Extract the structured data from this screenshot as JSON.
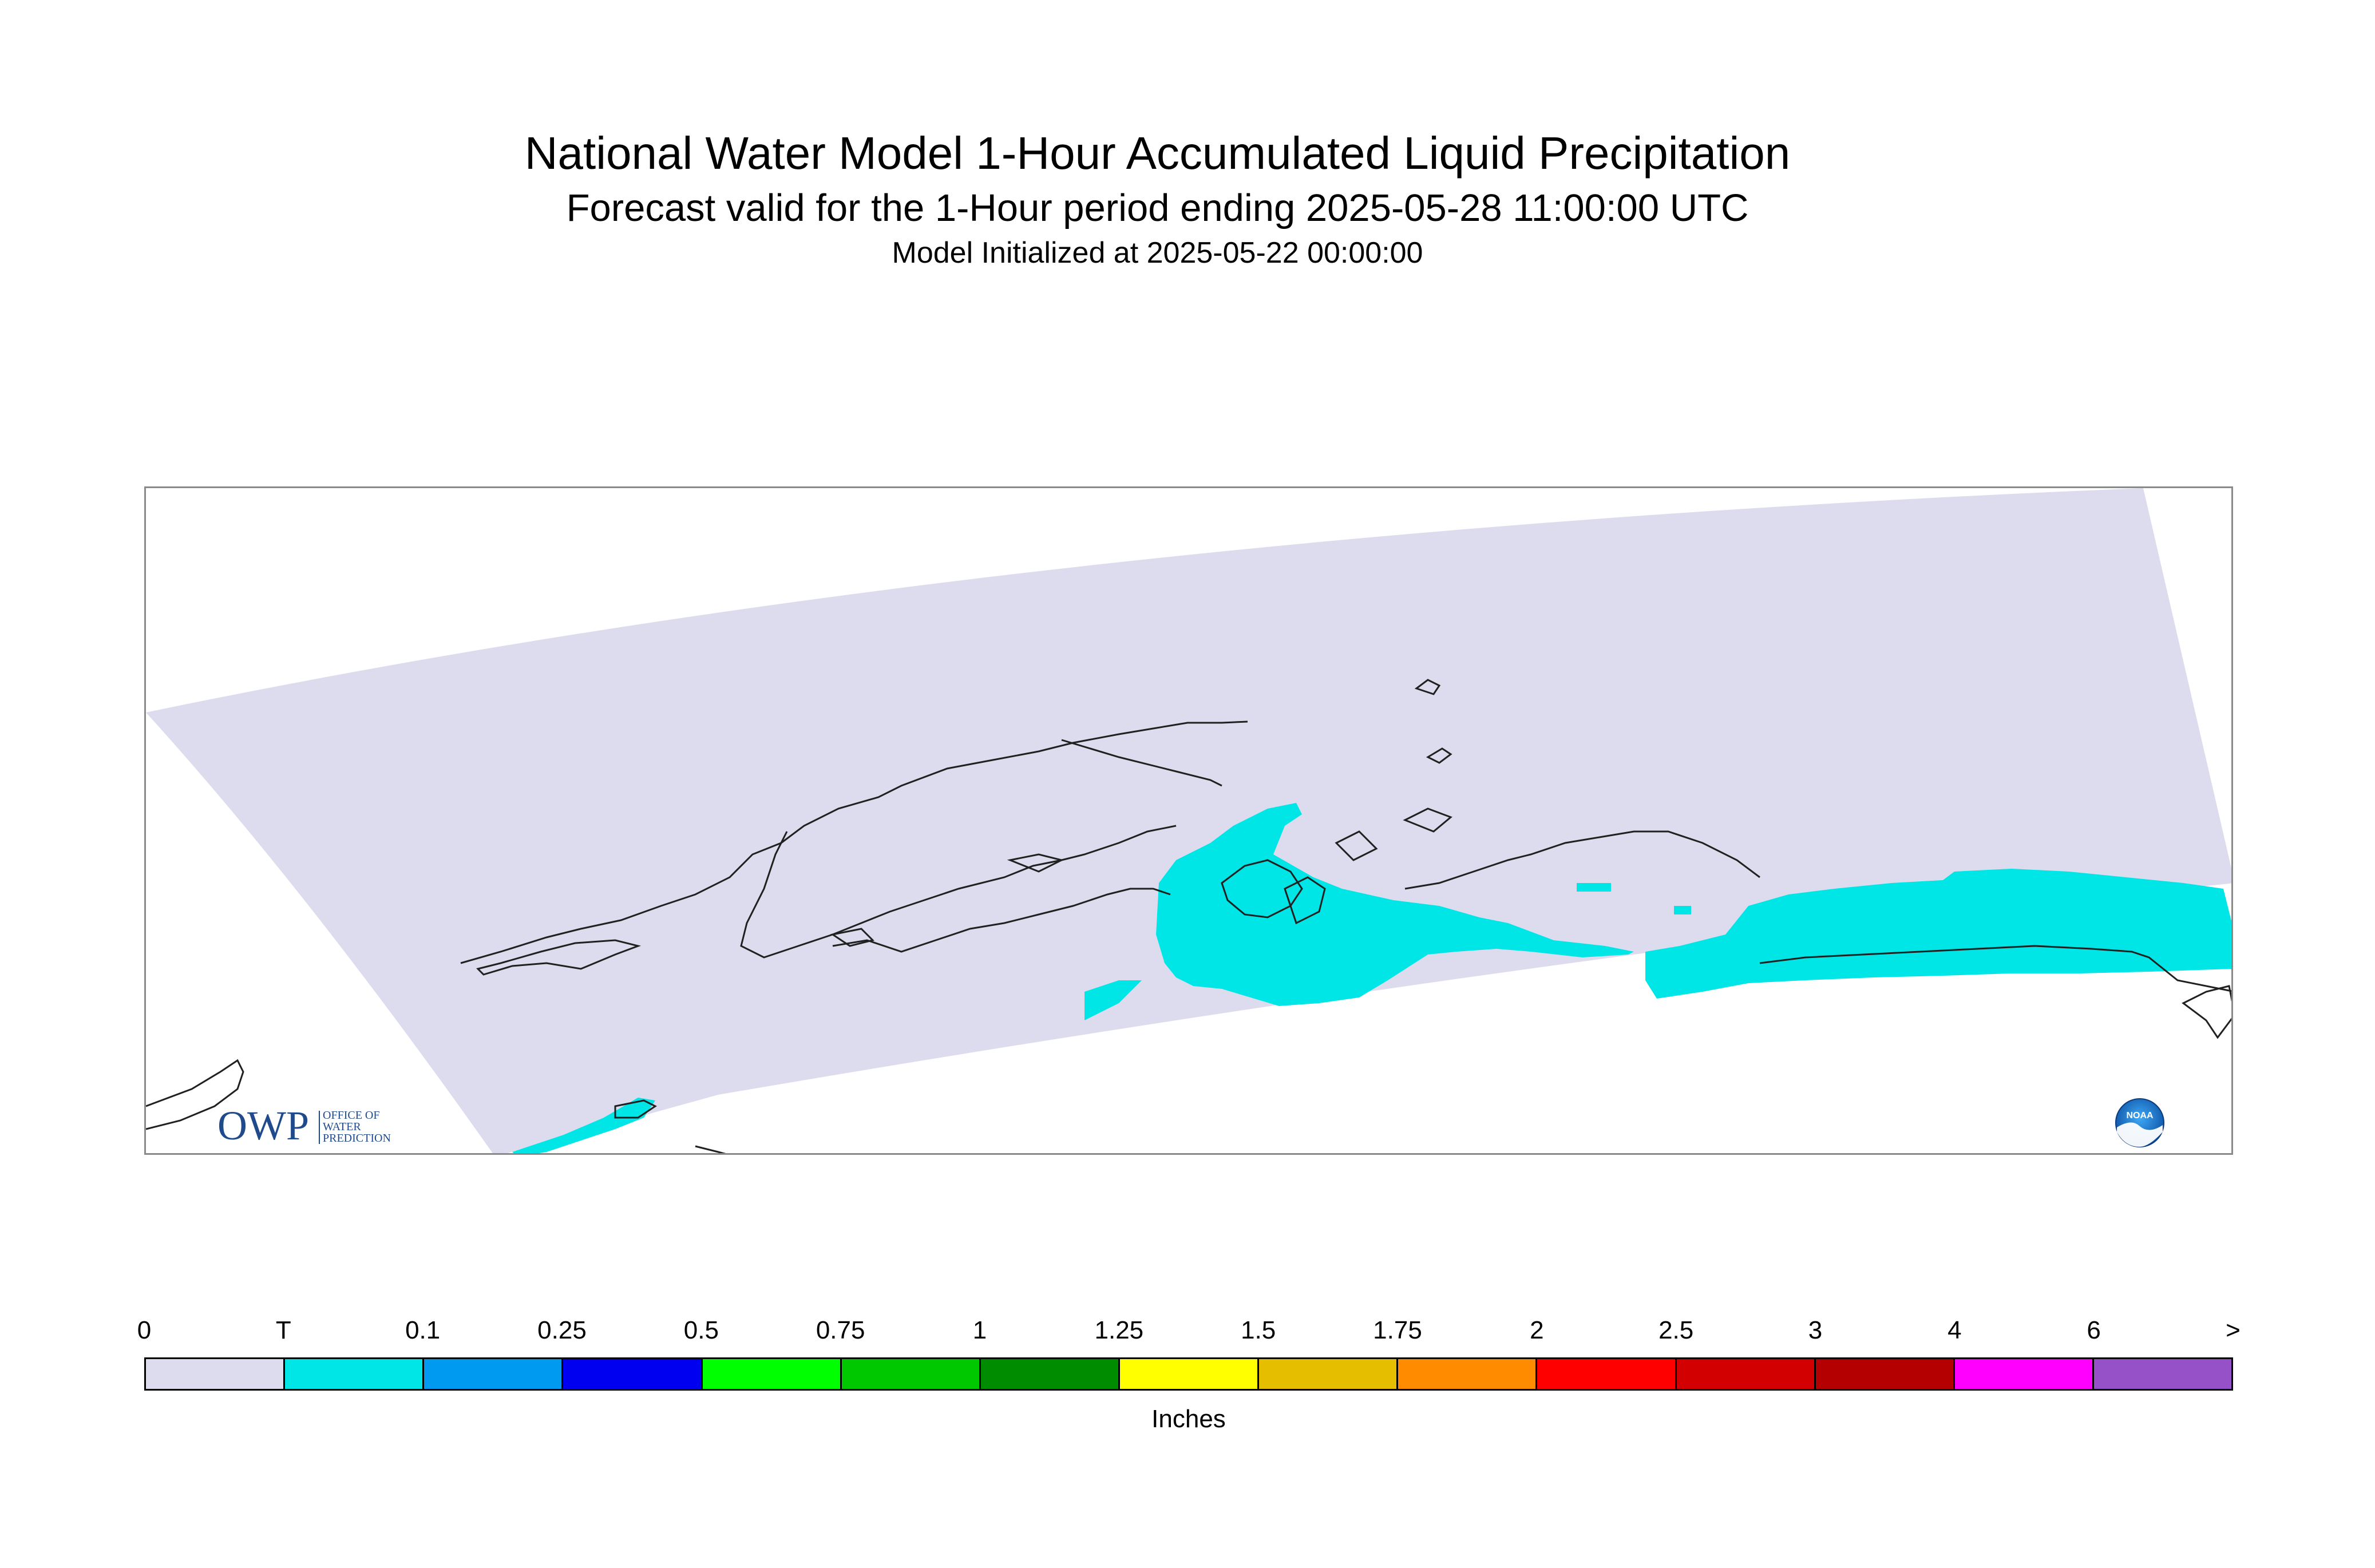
{
  "title": "National Water Model 1-Hour Accumulated Liquid Precipitation",
  "subtitle": "Forecast valid for the 1-Hour period ending 2025-05-28 11:00:00 UTC",
  "initialized": "Model Initialized at 2025-05-22 00:00:00",
  "map": {
    "domain_color": "#dcdcee",
    "coastline_color": "#202020",
    "precip_color": "#00e6e6"
  },
  "logos": {
    "owp": {
      "mark": "OWP",
      "lines": [
        "OFFICE OF",
        "WATER",
        "PREDICTION"
      ],
      "color": "#1f4a8c"
    },
    "noaa": {
      "text": "NOAA",
      "icon": "noaa-logo-icon"
    }
  },
  "legend": {
    "labels": [
      "0",
      "T",
      "0.1",
      "0.25",
      "0.5",
      "0.75",
      "1",
      "1.25",
      "1.5",
      "1.75",
      "2",
      "2.5",
      "3",
      "4",
      "6",
      ">"
    ],
    "colors": [
      "#dcdcee",
      "#00e6e6",
      "#009bf0",
      "#0000f0",
      "#00ff00",
      "#00c800",
      "#008c00",
      "#ffff00",
      "#e6be00",
      "#ff8c00",
      "#ff0000",
      "#d20000",
      "#b40000",
      "#ff00ff",
      "#9650c8"
    ],
    "units": "Inches"
  }
}
